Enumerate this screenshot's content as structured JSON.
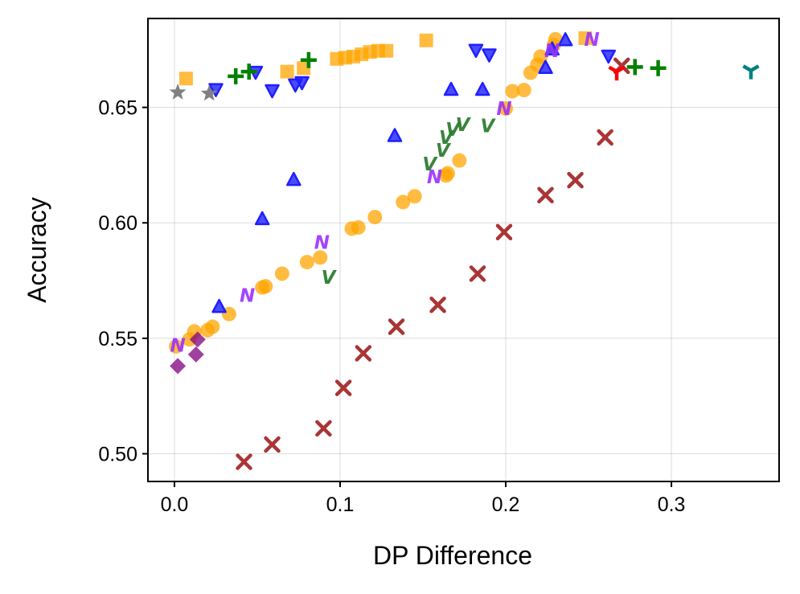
{
  "chart_data": {
    "type": "scatter",
    "title": "",
    "xlabel": "DP Difference",
    "ylabel": "Accuracy",
    "xlim": [
      -0.016,
      0.365
    ],
    "ylim": [
      0.488,
      0.6885
    ],
    "grid": true,
    "legend": "none",
    "xticks": [
      {
        "value": 0.0,
        "label": "0.0"
      },
      {
        "value": 0.1,
        "label": "0.1"
      },
      {
        "value": 0.2,
        "label": "0.2"
      },
      {
        "value": 0.3,
        "label": "0.3"
      }
    ],
    "yticks": [
      {
        "value": 0.5,
        "label": "0.50"
      },
      {
        "value": 0.55,
        "label": "0.55"
      },
      {
        "value": 0.6,
        "label": "0.60"
      },
      {
        "value": 0.65,
        "label": "0.65"
      }
    ],
    "series": [
      {
        "name": "orange-circle",
        "marker": "circle",
        "color": "#FFA500",
        "alpha": 0.75,
        "points": [
          [
            0.001,
            0.5465
          ],
          [
            0.009,
            0.5495
          ],
          [
            0.012,
            0.553
          ],
          [
            0.02,
            0.5535
          ],
          [
            0.023,
            0.555
          ],
          [
            0.033,
            0.5605
          ],
          [
            0.053,
            0.572
          ],
          [
            0.055,
            0.5725
          ],
          [
            0.065,
            0.578
          ],
          [
            0.08,
            0.583
          ],
          [
            0.088,
            0.585
          ],
          [
            0.107,
            0.5975
          ],
          [
            0.111,
            0.598
          ],
          [
            0.121,
            0.6025
          ],
          [
            0.138,
            0.609
          ],
          [
            0.145,
            0.6115
          ],
          [
            0.164,
            0.6205
          ],
          [
            0.165,
            0.6215
          ],
          [
            0.172,
            0.627
          ],
          [
            0.2,
            0.6495
          ],
          [
            0.204,
            0.657
          ],
          [
            0.211,
            0.6575
          ],
          [
            0.215,
            0.665
          ],
          [
            0.219,
            0.6685
          ],
          [
            0.221,
            0.672
          ],
          [
            0.229,
            0.677
          ],
          [
            0.23,
            0.6795
          ]
        ]
      },
      {
        "name": "orange-square",
        "marker": "square",
        "color": "#FFA500",
        "alpha": 0.75,
        "points": [
          [
            0.007,
            0.6625
          ],
          [
            0.068,
            0.6655
          ],
          [
            0.078,
            0.667
          ],
          [
            0.098,
            0.671
          ],
          [
            0.103,
            0.6715
          ],
          [
            0.108,
            0.672
          ],
          [
            0.113,
            0.673
          ],
          [
            0.118,
            0.674
          ],
          [
            0.123,
            0.6745
          ],
          [
            0.128,
            0.6745
          ],
          [
            0.152,
            0.679
          ],
          [
            0.248,
            0.68
          ]
        ]
      },
      {
        "name": "blue-triangle-up",
        "marker": "triangle-up",
        "color": "#1F1FFF",
        "alpha": 0.8,
        "points": [
          [
            0.027,
            0.5635
          ],
          [
            0.053,
            0.6015
          ],
          [
            0.072,
            0.6185
          ],
          [
            0.133,
            0.6375
          ],
          [
            0.167,
            0.6575
          ],
          [
            0.186,
            0.6575
          ],
          [
            0.224,
            0.667
          ],
          [
            0.228,
            0.675
          ],
          [
            0.236,
            0.679
          ]
        ]
      },
      {
        "name": "blue-triangle-down",
        "marker": "triangle-down",
        "color": "#1F1FFF",
        "alpha": 0.8,
        "points": [
          [
            0.025,
            0.658
          ],
          [
            0.049,
            0.6655
          ],
          [
            0.059,
            0.6575
          ],
          [
            0.073,
            0.66
          ],
          [
            0.077,
            0.661
          ],
          [
            0.182,
            0.675
          ],
          [
            0.19,
            0.673
          ],
          [
            0.262,
            0.6725
          ]
        ]
      },
      {
        "name": "green-plus",
        "marker": "plus",
        "color": "#008000",
        "alpha": 1.0,
        "points": [
          [
            0.037,
            0.6635
          ],
          [
            0.045,
            0.6655
          ],
          [
            0.081,
            0.6705
          ],
          [
            0.278,
            0.6675
          ],
          [
            0.292,
            0.667
          ]
        ]
      },
      {
        "name": "gray-star",
        "marker": "star",
        "color": "#808080",
        "alpha": 1.0,
        "points": [
          [
            0.002,
            0.6565
          ],
          [
            0.021,
            0.656
          ]
        ]
      },
      {
        "name": "brown-x",
        "marker": "x",
        "color": "#A52A2A",
        "alpha": 0.95,
        "points": [
          [
            0.042,
            0.4965
          ],
          [
            0.059,
            0.504
          ],
          [
            0.09,
            0.511
          ],
          [
            0.102,
            0.5285
          ],
          [
            0.114,
            0.5435
          ],
          [
            0.134,
            0.555
          ],
          [
            0.159,
            0.5645
          ],
          [
            0.183,
            0.578
          ],
          [
            0.199,
            0.596
          ],
          [
            0.224,
            0.612
          ],
          [
            0.242,
            0.6185
          ],
          [
            0.26,
            0.637
          ],
          [
            0.27,
            0.668
          ]
        ]
      },
      {
        "name": "purple-diamond",
        "marker": "diamond",
        "color": "#800080",
        "alpha": 0.75,
        "points": [
          [
            0.002,
            0.538
          ],
          [
            0.013,
            0.543
          ],
          [
            0.014,
            0.5495
          ]
        ]
      },
      {
        "name": "purple-N",
        "marker": "letter",
        "glyph": "N",
        "color": "#9B30FF",
        "alpha": 0.9,
        "points": [
          [
            0.002,
            0.547
          ],
          [
            0.044,
            0.5685
          ],
          [
            0.089,
            0.5915
          ],
          [
            0.157,
            0.62
          ],
          [
            0.199,
            0.6495
          ],
          [
            0.228,
            0.6745
          ],
          [
            0.252,
            0.6795
          ]
        ]
      },
      {
        "name": "green-V",
        "marker": "letter",
        "glyph": "V",
        "color": "#2E7D32",
        "alpha": 0.95,
        "points": [
          [
            0.093,
            0.5765
          ],
          [
            0.154,
            0.6255
          ],
          [
            0.162,
            0.6315
          ],
          [
            0.164,
            0.637
          ],
          [
            0.168,
            0.6405
          ],
          [
            0.174,
            0.6425
          ],
          [
            0.189,
            0.642
          ]
        ]
      },
      {
        "name": "red-tri-down",
        "marker": "tri-down",
        "color": "#FF0000",
        "alpha": 1.0,
        "points": [
          [
            0.267,
            0.6655
          ]
        ]
      },
      {
        "name": "teal-tri-down",
        "marker": "tri-down",
        "color": "#008080",
        "alpha": 1.0,
        "points": [
          [
            0.348,
            0.666
          ]
        ]
      }
    ]
  }
}
